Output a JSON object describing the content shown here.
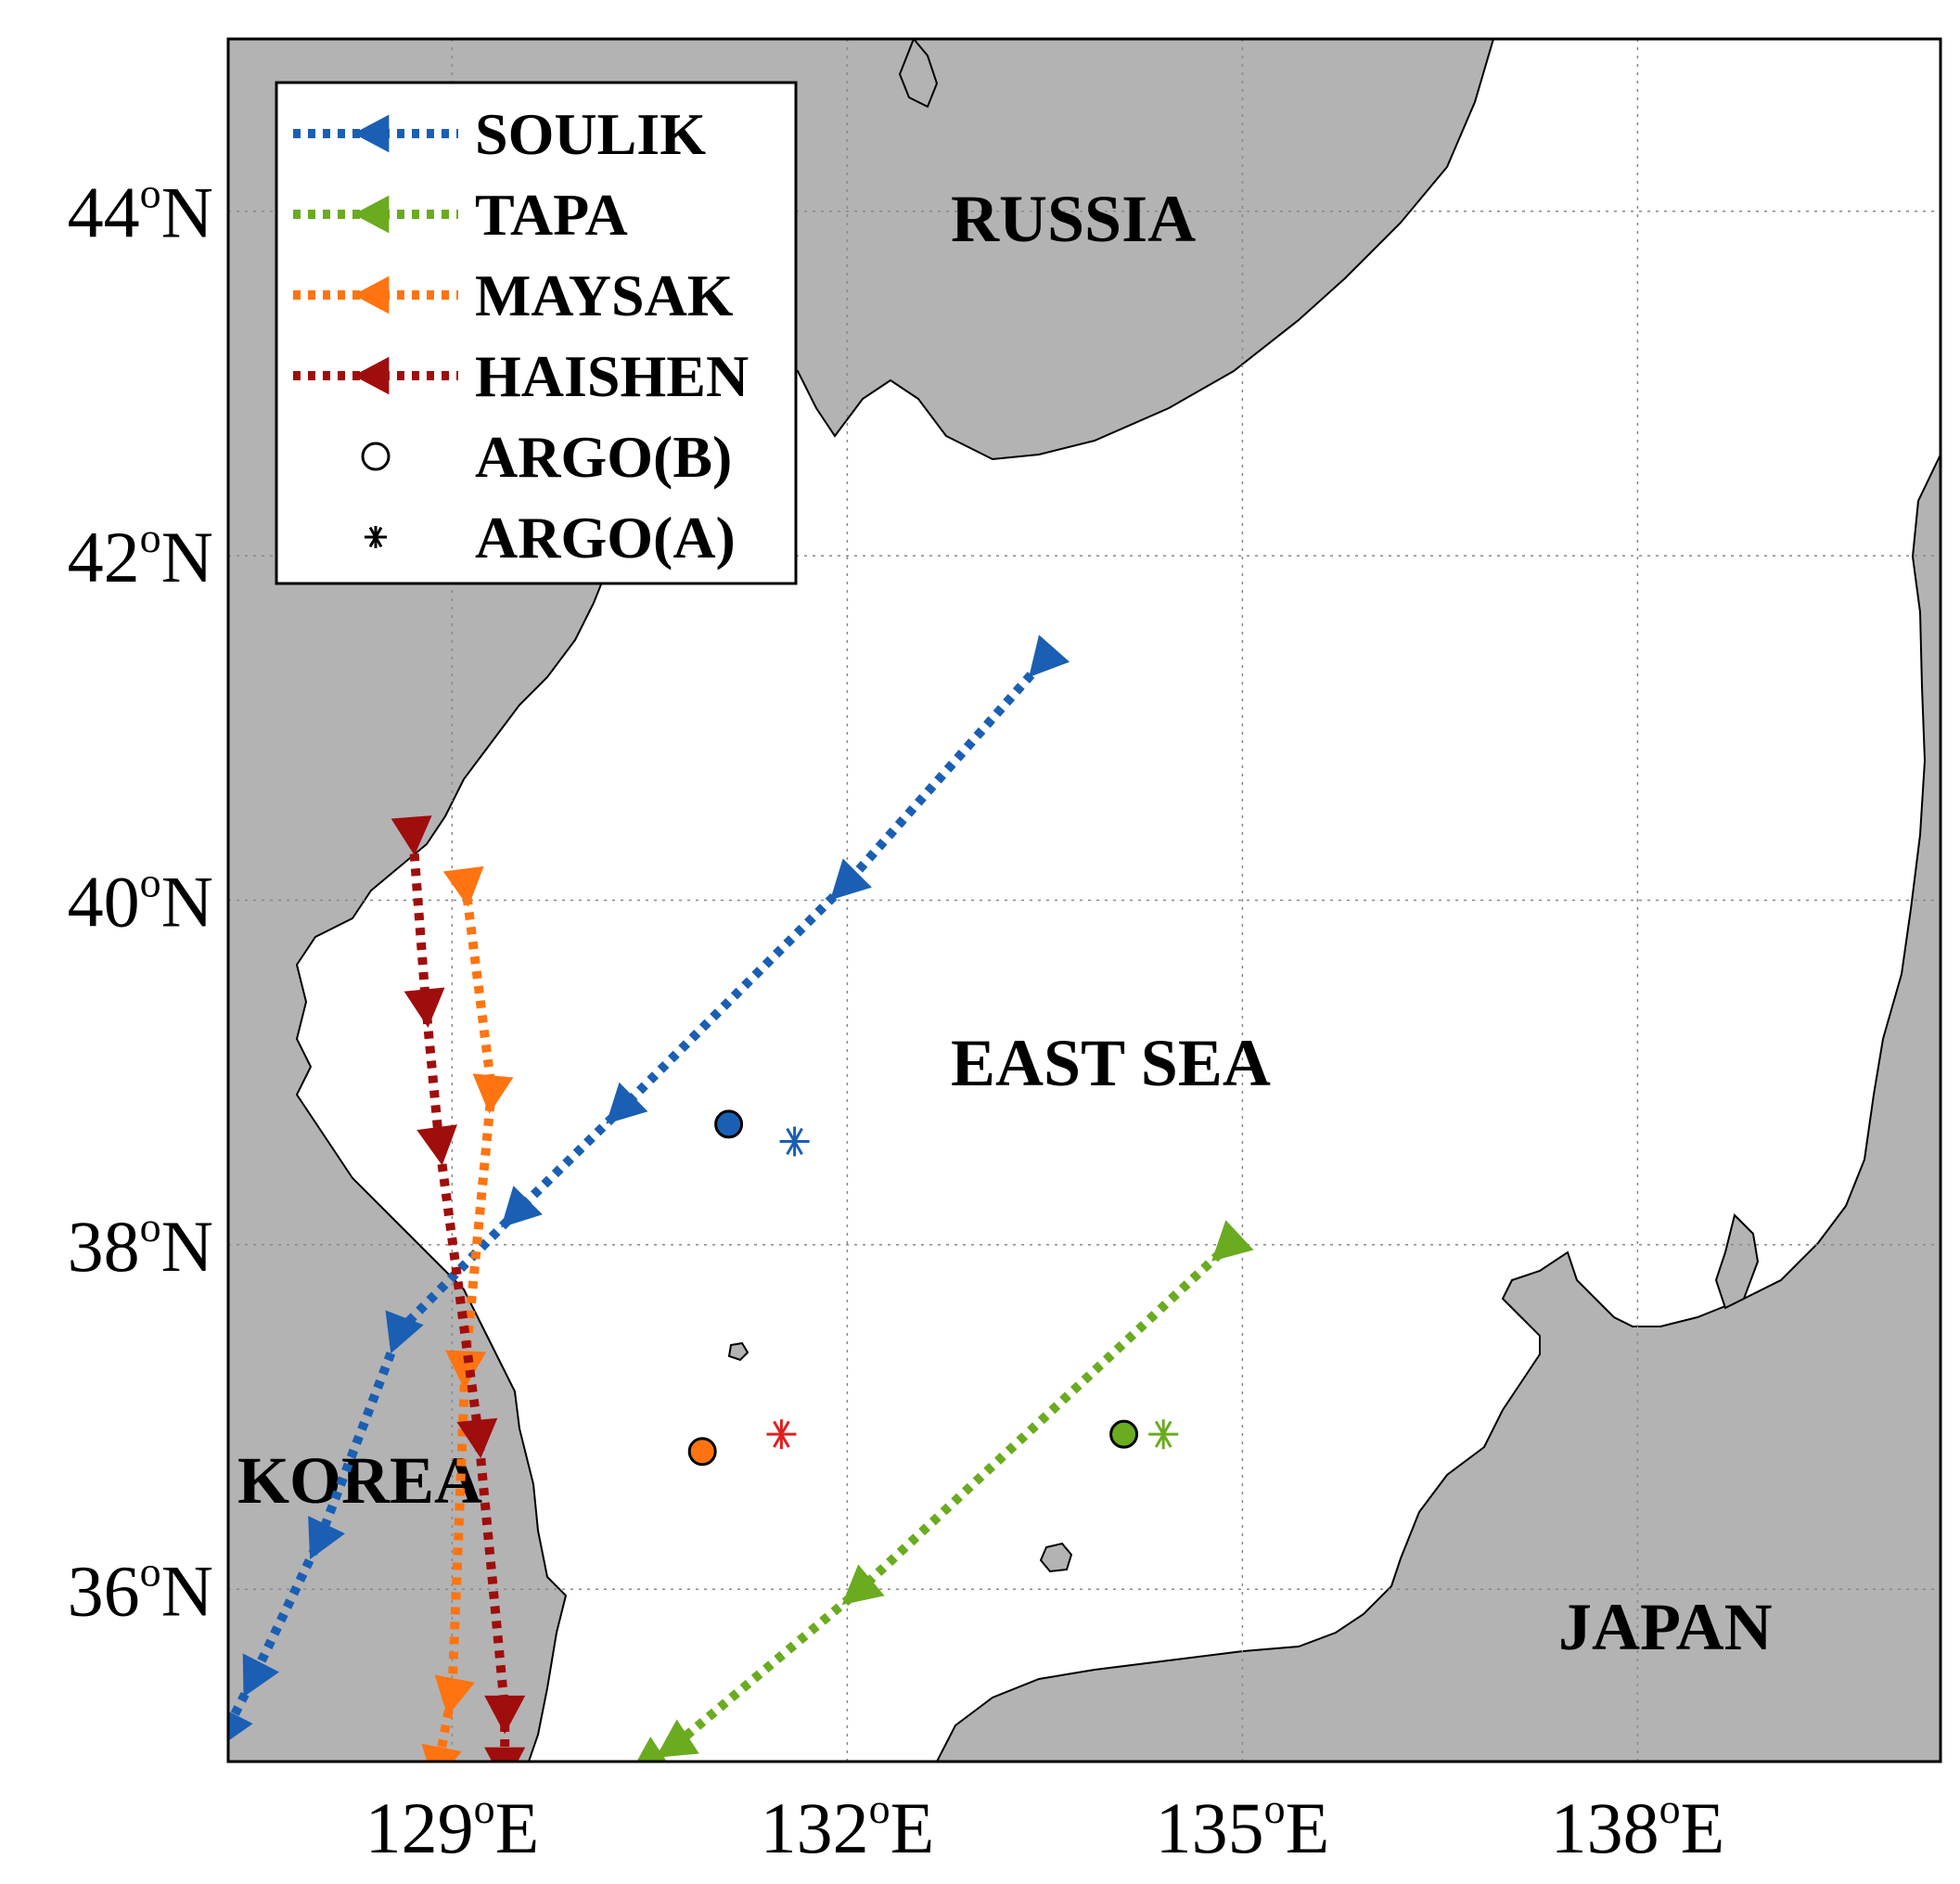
{
  "map": {
    "lon_range": [
      127.3,
      140.3
    ],
    "lat_range": [
      35.0,
      45.0
    ],
    "x_ticks": [
      {
        "value": 129,
        "num": "129",
        "sup": "o",
        "hem": "E"
      },
      {
        "value": 132,
        "num": "132",
        "sup": "o",
        "hem": "E"
      },
      {
        "value": 135,
        "num": "135",
        "sup": "o",
        "hem": "E"
      },
      {
        "value": 138,
        "num": "138",
        "sup": "o",
        "hem": "E"
      }
    ],
    "y_ticks": [
      {
        "value": 36,
        "num": "36",
        "sup": "o",
        "hem": "N"
      },
      {
        "value": 38,
        "num": "38",
        "sup": "o",
        "hem": "N"
      },
      {
        "value": 40,
        "num": "40",
        "sup": "o",
        "hem": "N"
      },
      {
        "value": 42,
        "num": "42",
        "sup": "o",
        "hem": "N"
      },
      {
        "value": 44,
        "num": "44",
        "sup": "o",
        "hem": "N"
      }
    ],
    "grid": true,
    "land_color": "#b3b3b3",
    "sea_color": "#ffffff",
    "regions": {
      "russia": "RUSSIA",
      "east_sea": "EAST SEA",
      "korea": "KOREA",
      "japan": "JAPAN"
    }
  },
  "legend": {
    "placement": "top-left",
    "items": [
      {
        "label": "SOULIK",
        "type": "track",
        "color": "#1a5fb4"
      },
      {
        "label": "TAPA",
        "type": "track",
        "color": "#6aab1f"
      },
      {
        "label": "MAYSAK",
        "type": "track",
        "color": "#ff7410"
      },
      {
        "label": "HAISHEN",
        "type": "track",
        "color": "#a00d0d"
      },
      {
        "label": "ARGO(B)",
        "type": "circle",
        "color": "#000000"
      },
      {
        "label": "ARGO(A)",
        "type": "asterisk",
        "color": "#000000"
      }
    ]
  },
  "chart_data": {
    "type": "scatter",
    "xlabel": "",
    "ylabel": "",
    "xlim": [
      127.3,
      140.3
    ],
    "ylim": [
      35.0,
      45.0
    ],
    "series": [
      {
        "name": "SOULIK",
        "color": "#1a5fb4",
        "points": [
          [
            127.3,
            35.2
          ],
          [
            127.5,
            35.5
          ],
          [
            128.0,
            36.3
          ],
          [
            128.6,
            37.5
          ],
          [
            129.5,
            38.2
          ],
          [
            130.3,
            38.8
          ],
          [
            132.0,
            40.1
          ],
          [
            133.5,
            41.4
          ]
        ]
      },
      {
        "name": "TAPA",
        "color": "#6aab1f",
        "points": [
          [
            130.5,
            35.0
          ],
          [
            130.7,
            35.1
          ],
          [
            132.1,
            36.0
          ],
          [
            134.9,
            38.0
          ]
        ]
      },
      {
        "name": "MAYSAK",
        "color": "#ff7410",
        "points": [
          [
            128.9,
            35.0
          ],
          [
            129.0,
            35.4
          ],
          [
            129.1,
            37.3
          ],
          [
            129.3,
            38.9
          ],
          [
            129.1,
            40.1
          ]
        ]
      },
      {
        "name": "HAISHEN",
        "color": "#a00d0d",
        "points": [
          [
            129.4,
            35.0
          ],
          [
            129.4,
            35.3
          ],
          [
            129.2,
            36.9
          ],
          [
            128.9,
            38.6
          ],
          [
            128.8,
            39.4
          ],
          [
            128.7,
            40.4
          ]
        ]
      }
    ],
    "argo_b": [
      {
        "lon": 131.1,
        "lat": 38.7,
        "color": "#1a5fb4"
      },
      {
        "lon": 134.1,
        "lat": 36.9,
        "color": "#6aab1f"
      },
      {
        "lon": 130.9,
        "lat": 36.8,
        "color": "#ff7410"
      }
    ],
    "argo_a": [
      {
        "lon": 131.6,
        "lat": 38.6,
        "color": "#1a5fb4"
      },
      {
        "lon": 134.4,
        "lat": 36.9,
        "color": "#6aab1f"
      },
      {
        "lon": 131.5,
        "lat": 36.9,
        "color": "#e02020"
      }
    ]
  }
}
